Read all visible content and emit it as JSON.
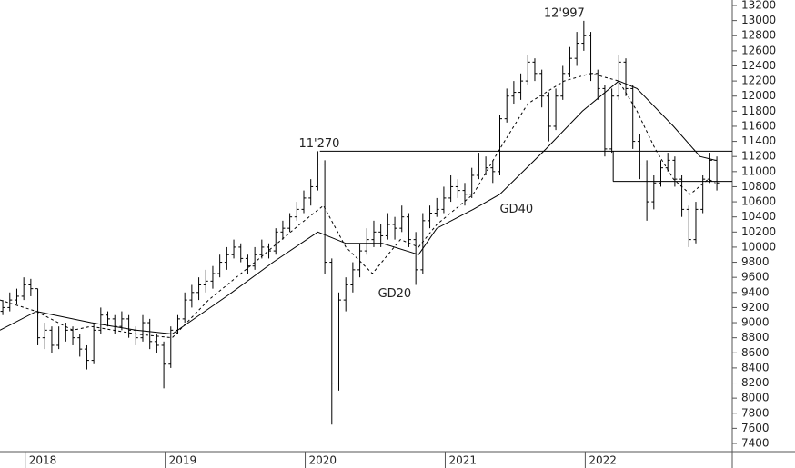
{
  "chart_data": {
    "type": "ohlc",
    "xlim": [
      2017.82,
      2023.05
    ],
    "xticks": [
      2018,
      2019,
      2020,
      2021,
      2022
    ],
    "ylim": [
      7400,
      13200
    ],
    "yticks": [
      7400,
      7600,
      7800,
      8000,
      8200,
      8400,
      8600,
      8800,
      9000,
      9200,
      9400,
      9600,
      9800,
      10000,
      10200,
      10400,
      10600,
      10800,
      11000,
      11200,
      11400,
      11600,
      11800,
      12000,
      12200,
      12400,
      12600,
      12800,
      13000,
      13200
    ],
    "color": "#000000",
    "x": [
      2017.84,
      2017.89,
      2017.94,
      2017.99,
      2018.04,
      2018.09,
      2018.14,
      2018.19,
      2018.24,
      2018.29,
      2018.34,
      2018.39,
      2018.44,
      2018.49,
      2018.54,
      2018.59,
      2018.64,
      2018.69,
      2018.74,
      2018.79,
      2018.84,
      2018.89,
      2018.94,
      2018.99,
      2019.04,
      2019.09,
      2019.14,
      2019.19,
      2019.24,
      2019.29,
      2019.34,
      2019.39,
      2019.44,
      2019.49,
      2019.54,
      2019.59,
      2019.64,
      2019.69,
      2019.74,
      2019.79,
      2019.84,
      2019.89,
      2019.94,
      2019.99,
      2020.04,
      2020.09,
      2020.14,
      2020.19,
      2020.24,
      2020.29,
      2020.34,
      2020.39,
      2020.44,
      2020.49,
      2020.54,
      2020.59,
      2020.64,
      2020.69,
      2020.74,
      2020.79,
      2020.84,
      2020.89,
      2020.94,
      2020.99,
      2021.04,
      2021.09,
      2021.14,
      2021.19,
      2021.24,
      2021.29,
      2021.34,
      2021.39,
      2021.44,
      2021.49,
      2021.54,
      2021.59,
      2021.64,
      2021.69,
      2021.74,
      2021.79,
      2021.84,
      2021.89,
      2021.94,
      2021.99,
      2022.04,
      2022.09,
      2022.14,
      2022.19,
      2022.24,
      2022.29,
      2022.34,
      2022.39,
      2022.44,
      2022.49,
      2022.54,
      2022.59,
      2022.64,
      2022.69,
      2022.74,
      2022.79,
      2022.84,
      2022.89,
      2022.94
    ],
    "open": [
      9150,
      9200,
      9300,
      9350,
      9500,
      9450,
      8800,
      8900,
      8700,
      8850,
      8900,
      8800,
      8650,
      8500,
      8900,
      9100,
      9050,
      8950,
      9050,
      8900,
      8800,
      9000,
      8750,
      8700,
      8450,
      8900,
      9050,
      9300,
      9400,
      9500,
      9550,
      9650,
      9800,
      9900,
      10000,
      9850,
      9750,
      9900,
      10000,
      9950,
      10200,
      10250,
      10400,
      10500,
      10650,
      10800,
      11100,
      9800,
      8200,
      9300,
      9500,
      9700,
      9950,
      10100,
      10200,
      10150,
      10300,
      10250,
      10400,
      10100,
      9700,
      10350,
      10450,
      10500,
      10650,
      10800,
      10750,
      10700,
      10950,
      11100,
      11050,
      11000,
      11700,
      12000,
      12050,
      12200,
      12450,
      12300,
      12000,
      11600,
      12000,
      12300,
      12500,
      12700,
      12800,
      12300,
      12100,
      11300,
      12000,
      12450,
      12100,
      11400,
      11100,
      10600,
      10850,
      11050,
      11150,
      10900,
      10500,
      10100,
      10500,
      10900,
      11150
    ],
    "high": [
      9300,
      9400,
      9450,
      9600,
      9580,
      9450,
      9000,
      8950,
      8950,
      9000,
      8950,
      8850,
      8700,
      9000,
      9200,
      9150,
      9100,
      9150,
      9100,
      8950,
      9100,
      9050,
      8850,
      8750,
      8950,
      9100,
      9400,
      9500,
      9600,
      9700,
      9750,
      9900,
      10000,
      10100,
      10050,
      9900,
      10000,
      10100,
      10050,
      10250,
      10350,
      10450,
      10600,
      10750,
      10900,
      11270,
      11150,
      9850,
      9400,
      9600,
      9800,
      10050,
      10250,
      10350,
      10300,
      10450,
      10400,
      10550,
      10450,
      10200,
      10450,
      10550,
      10650,
      10800,
      10950,
      10900,
      10850,
      11050,
      11250,
      11200,
      11150,
      11750,
      12100,
      12200,
      12300,
      12550,
      12500,
      12350,
      12050,
      12100,
      12400,
      12650,
      12850,
      12997,
      12850,
      12350,
      12150,
      12100,
      12550,
      12500,
      12150,
      11500,
      11150,
      10950,
      11150,
      11250,
      11200,
      10950,
      10550,
      10600,
      10950,
      11250,
      11200
    ],
    "low": [
      9100,
      9150,
      9250,
      9300,
      9350,
      8700,
      8650,
      8600,
      8650,
      8750,
      8700,
      8550,
      8380,
      8450,
      8850,
      8950,
      8850,
      8900,
      8800,
      8700,
      8750,
      8650,
      8600,
      8130,
      8400,
      8850,
      9000,
      9200,
      9300,
      9400,
      9450,
      9600,
      9700,
      9850,
      9800,
      9650,
      9700,
      9850,
      9850,
      9900,
      10100,
      10200,
      10350,
      10450,
      10550,
      10750,
      9650,
      7650,
      8100,
      9150,
      9400,
      9600,
      9900,
      10000,
      10000,
      10100,
      10100,
      10200,
      10000,
      9500,
      9650,
      10250,
      10400,
      10450,
      10600,
      10650,
      10550,
      10650,
      10900,
      10950,
      10850,
      10950,
      11650,
      11900,
      11950,
      12150,
      12200,
      11850,
      11400,
      11550,
      11950,
      12250,
      12400,
      12600,
      12200,
      11950,
      11200,
      11250,
      11950,
      12000,
      11300,
      10900,
      10350,
      10500,
      10800,
      11000,
      10800,
      10400,
      10000,
      10050,
      10450,
      10850,
      10750
    ],
    "close": [
      9200,
      9300,
      9350,
      9500,
      9450,
      8800,
      8900,
      8700,
      8850,
      8900,
      8800,
      8650,
      8500,
      8900,
      9100,
      9050,
      8950,
      9050,
      8900,
      8800,
      9000,
      8750,
      8700,
      8450,
      8900,
      9050,
      9300,
      9400,
      9500,
      9550,
      9650,
      9800,
      9900,
      10000,
      9850,
      9750,
      9900,
      10000,
      9950,
      10200,
      10250,
      10400,
      10500,
      10650,
      10800,
      11100,
      9800,
      8200,
      9300,
      9500,
      9700,
      9950,
      10100,
      10200,
      10150,
      10300,
      10250,
      10400,
      10100,
      9700,
      10350,
      10450,
      10500,
      10650,
      10800,
      10750,
      10700,
      10950,
      11100,
      11050,
      11000,
      11700,
      12000,
      12050,
      12200,
      12450,
      12300,
      12000,
      11600,
      12000,
      12300,
      12500,
      12700,
      12800,
      12300,
      12100,
      11300,
      12000,
      12450,
      12100,
      11400,
      11100,
      10600,
      10850,
      11050,
      11150,
      10900,
      10500,
      10100,
      10500,
      10900,
      11150,
      10850
    ],
    "series": [
      {
        "name": "GD20",
        "color": "#000000",
        "dashed": true,
        "x": [
          2017.82,
          2018.08,
          2018.34,
          2018.47,
          2018.79,
          2019.05,
          2019.31,
          2019.64,
          2019.96,
          2020.13,
          2020.29,
          2020.48,
          2020.68,
          2020.81,
          2020.94,
          2021.2,
          2021.39,
          2021.59,
          2021.85,
          2022.04,
          2022.24,
          2022.37,
          2022.5,
          2022.63,
          2022.75,
          2022.88,
          2022.93
        ],
        "values": [
          9300,
          9150,
          8900,
          8950,
          8850,
          8800,
          9300,
          9800,
          10300,
          10550,
          10000,
          9650,
          10100,
          10000,
          10300,
          10700,
          11300,
          11900,
          12200,
          12300,
          12200,
          11800,
          11300,
          10900,
          10700,
          10900,
          10850
        ]
      },
      {
        "name": "GD40",
        "color": "#000000",
        "dashed": false,
        "x": [
          2017.82,
          2018.08,
          2018.47,
          2018.79,
          2019.05,
          2019.44,
          2019.77,
          2020.09,
          2020.29,
          2020.55,
          2020.81,
          2020.94,
          2021.2,
          2021.39,
          2021.72,
          2021.98,
          2022.24,
          2022.37,
          2022.63,
          2022.82,
          2022.93
        ],
        "values": [
          8900,
          9150,
          9000,
          8900,
          8850,
          9350,
          9800,
          10200,
          10050,
          10050,
          9900,
          10250,
          10500,
          10700,
          11300,
          11800,
          12200,
          12100,
          11600,
          11200,
          11150
        ]
      }
    ],
    "levels": [
      {
        "value": 11270,
        "from": 2020.105
      },
      {
        "value": 10870,
        "from": 2022.2
      }
    ],
    "annotations": [
      {
        "text": "11'270",
        "value": 11270,
        "x": 2020.1
      },
      {
        "text": "12'997",
        "value": 12997,
        "x": 2021.85
      }
    ]
  }
}
